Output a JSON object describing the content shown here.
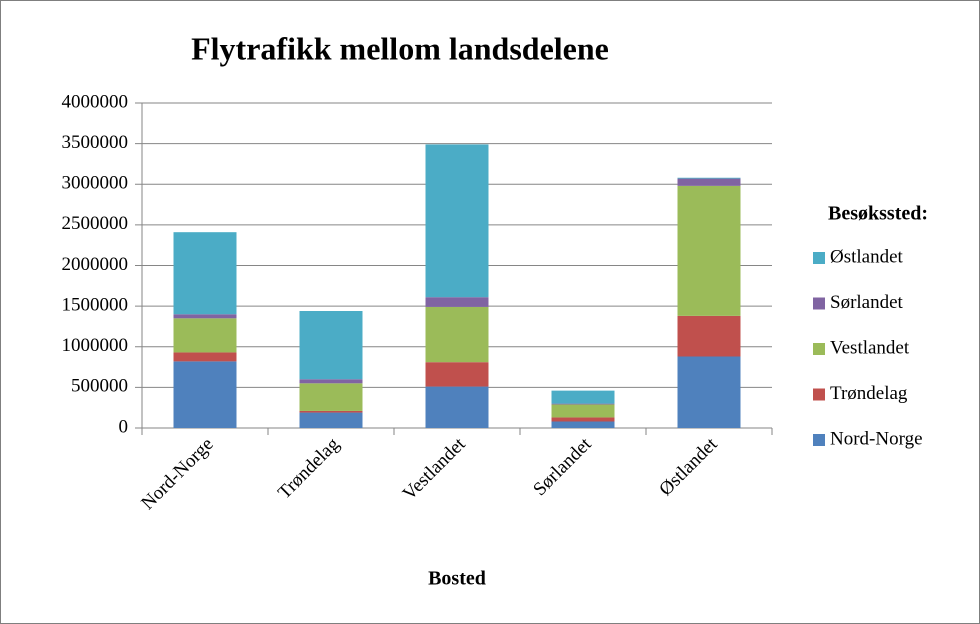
{
  "chart_data": {
    "type": "stacked_bar",
    "title": "Flytrafikk mellom landsdelene",
    "x_label": "Bosted",
    "legend_title": "Besøkssted:",
    "categories": [
      "Nord-Norge",
      "Trøndelag",
      "Vestlandet",
      "Sørlandet",
      "Østlandet"
    ],
    "series": [
      {
        "name": "Nord-Norge",
        "color": "#4f81bd",
        "values": [
          820000,
          190000,
          510000,
          80000,
          880000
        ]
      },
      {
        "name": "Trøndelag",
        "color": "#c0504d",
        "values": [
          110000,
          20000,
          300000,
          50000,
          500000
        ]
      },
      {
        "name": "Vestlandet",
        "color": "#9bbb59",
        "values": [
          420000,
          340000,
          680000,
          160000,
          1600000
        ]
      },
      {
        "name": "Sørlandet",
        "color": "#8064a2",
        "values": [
          50000,
          50000,
          120000,
          10000,
          90000
        ]
      },
      {
        "name": "Østlandet",
        "color": "#4bacc6",
        "values": [
          1010000,
          840000,
          1880000,
          160000,
          10000
        ]
      }
    ],
    "ylim": [
      0,
      4000000
    ],
    "yticks": [
      0,
      500000,
      1000000,
      1500000,
      2000000,
      2500000,
      3000000,
      3500000,
      4000000
    ],
    "grid": true,
    "legend": "right"
  }
}
